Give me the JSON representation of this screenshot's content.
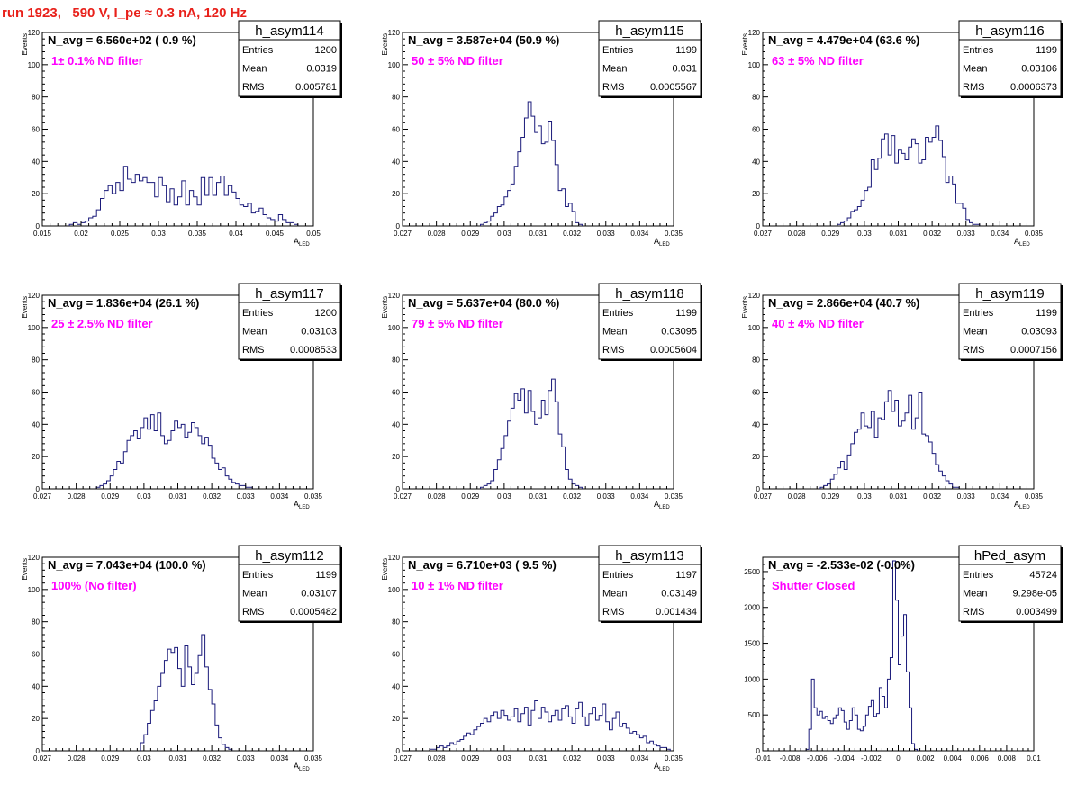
{
  "run_title": "run 1923,   590 V, I_pe ≈ 0.3 nA, 120 Hz",
  "colors": {
    "hist": "#1a1a7a",
    "annotation": "#ff00ff",
    "run_title": "#e8201a"
  },
  "chart_data": [
    {
      "type": "histogram",
      "name": "h_asym114",
      "navg": "N_avg = 6.560e+02 ( 0.9 %)",
      "annotation": "1± 0.1% ND filter",
      "stats": {
        "Entries": "1200",
        "Mean": "0.0319",
        "RMS": "0.005781"
      },
      "xlim": [
        0.015,
        0.05
      ],
      "ylim": [
        0,
        120
      ],
      "xticks": [
        "0.015",
        "0.02",
        "0.025",
        "0.03",
        "0.035",
        "0.04",
        "0.045",
        "0.05"
      ],
      "yticks": [
        "0",
        "20",
        "40",
        "60",
        "80",
        "100",
        "120"
      ],
      "xlabel": "A",
      "xlabel_sub": "LED",
      "ylabel": "Events",
      "bin_start": 0.0185,
      "bin_width": 0.0005,
      "counts": [
        1,
        2,
        1,
        2,
        3,
        5,
        6,
        10,
        17,
        22,
        25,
        20,
        27,
        22,
        37,
        29,
        27,
        32,
        28,
        30,
        27,
        27,
        18,
        30,
        25,
        15,
        23,
        13,
        18,
        28,
        13,
        22,
        18,
        13,
        30,
        19,
        30,
        19,
        27,
        31,
        19,
        25,
        21,
        17,
        13,
        12,
        14,
        8,
        9,
        11,
        7,
        5,
        4,
        3,
        7,
        4,
        2,
        2,
        1
      ]
    },
    {
      "type": "histogram",
      "name": "h_asym115",
      "navg": "N_avg = 3.587e+04 (50.9 %)",
      "annotation": "50 ± 5% ND filter",
      "stats": {
        "Entries": "1199",
        "Mean": "0.031",
        "RMS": "0.0005567"
      },
      "xlim": [
        0.027,
        0.035
      ],
      "ylim": [
        0,
        120
      ],
      "xticks": [
        "0.027",
        "0.028",
        "0.029",
        "0.03",
        "0.031",
        "0.032",
        "0.033",
        "0.034",
        "0.035"
      ],
      "yticks": [
        "0",
        "20",
        "40",
        "60",
        "80",
        "100",
        "120"
      ],
      "xlabel": "A",
      "xlabel_sub": "LED",
      "ylabel": "Events",
      "bin_start": 0.0293,
      "bin_width": 0.0001,
      "counts": [
        1,
        2,
        3,
        6,
        8,
        12,
        13,
        18,
        22,
        26,
        37,
        46,
        55,
        67,
        77,
        68,
        58,
        62,
        51,
        52,
        65,
        53,
        38,
        22,
        23,
        12,
        14,
        9,
        2,
        1
      ]
    },
    {
      "type": "histogram",
      "name": "h_asym116",
      "navg": "N_avg = 4.479e+04 (63.6 %)",
      "annotation": "63 ± 5% ND filter",
      "stats": {
        "Entries": "1199",
        "Mean": "0.03106",
        "RMS": "0.0006373"
      },
      "xlim": [
        0.027,
        0.035
      ],
      "ylim": [
        0,
        120
      ],
      "xticks": [
        "0.027",
        "0.028",
        "0.029",
        "0.03",
        "0.031",
        "0.032",
        "0.033",
        "0.034",
        "0.035"
      ],
      "yticks": [
        "0",
        "20",
        "40",
        "60",
        "80",
        "100",
        "120"
      ],
      "xlabel": "A",
      "xlabel_sub": "LED",
      "ylabel": "Events",
      "bin_start": 0.0292,
      "bin_width": 0.0001,
      "counts": [
        1,
        2,
        3,
        5,
        9,
        10,
        12,
        16,
        22,
        24,
        41,
        35,
        42,
        54,
        57,
        44,
        56,
        39,
        47,
        45,
        41,
        49,
        54,
        51,
        39,
        41,
        55,
        52,
        55,
        62,
        53,
        43,
        27,
        31,
        26,
        14,
        14,
        11,
        4,
        2,
        1,
        1
      ]
    },
    {
      "type": "histogram",
      "name": "h_asym117",
      "navg": "N_avg = 1.836e+04 (26.1 %)",
      "annotation": "25 ± 2.5% ND filter",
      "stats": {
        "Entries": "1200",
        "Mean": "0.03103",
        "RMS": "0.0008533"
      },
      "xlim": [
        0.027,
        0.035
      ],
      "ylim": [
        0,
        120
      ],
      "xticks": [
        "0.027",
        "0.028",
        "0.029",
        "0.03",
        "0.031",
        "0.032",
        "0.033",
        "0.034",
        "0.035"
      ],
      "yticks": [
        "0",
        "20",
        "40",
        "60",
        "80",
        "100",
        "120"
      ],
      "xlabel": "A",
      "xlabel_sub": "LED",
      "ylabel": "Events",
      "bin_start": 0.0286,
      "bin_width": 0.0001,
      "counts": [
        1,
        2,
        3,
        5,
        8,
        12,
        17,
        16,
        23,
        30,
        33,
        36,
        31,
        38,
        44,
        37,
        46,
        36,
        47,
        33,
        28,
        30,
        36,
        42,
        38,
        40,
        32,
        35,
        41,
        38,
        33,
        28,
        32,
        27,
        19,
        16,
        12,
        13,
        8,
        6,
        4,
        3,
        2,
        2,
        1,
        1
      ]
    },
    {
      "type": "histogram",
      "name": "h_asym118",
      "navg": "N_avg = 5.637e+04 (80.0 %)",
      "annotation": "79 ± 5% ND filter",
      "stats": {
        "Entries": "1199",
        "Mean": "0.03095",
        "RMS": "0.0005604"
      },
      "xlim": [
        0.027,
        0.035
      ],
      "ylim": [
        0,
        120
      ],
      "xticks": [
        "0.027",
        "0.028",
        "0.029",
        "0.03",
        "0.031",
        "0.032",
        "0.033",
        "0.034",
        "0.035"
      ],
      "yticks": [
        "0",
        "20",
        "40",
        "60",
        "80",
        "100",
        "120"
      ],
      "xlabel": "A",
      "xlabel_sub": "LED",
      "ylabel": "Events",
      "bin_start": 0.0293,
      "bin_width": 0.0001,
      "counts": [
        1,
        2,
        3,
        5,
        12,
        18,
        25,
        33,
        42,
        50,
        59,
        55,
        62,
        47,
        61,
        48,
        40,
        44,
        55,
        46,
        61,
        68,
        54,
        34,
        26,
        12,
        6,
        3,
        2,
        1
      ]
    },
    {
      "type": "histogram",
      "name": "h_asym119",
      "navg": "N_avg = 2.866e+04 (40.7 %)",
      "annotation": "40 ± 4% ND filter",
      "stats": {
        "Entries": "1199",
        "Mean": "0.03093",
        "RMS": "0.0007156"
      },
      "xlim": [
        0.027,
        0.035
      ],
      "ylim": [
        0,
        120
      ],
      "xticks": [
        "0.027",
        "0.028",
        "0.029",
        "0.03",
        "0.031",
        "0.032",
        "0.033",
        "0.034",
        "0.035"
      ],
      "yticks": [
        "0",
        "20",
        "40",
        "60",
        "80",
        "100",
        "120"
      ],
      "xlabel": "A",
      "xlabel_sub": "LED",
      "ylabel": "Events",
      "bin_start": 0.0287,
      "bin_width": 0.0001,
      "counts": [
        1,
        2,
        3,
        6,
        9,
        13,
        17,
        12,
        21,
        28,
        35,
        37,
        47,
        39,
        38,
        48,
        32,
        44,
        43,
        54,
        61,
        48,
        55,
        39,
        42,
        47,
        58,
        37,
        44,
        60,
        34,
        33,
        29,
        22,
        15,
        11,
        8,
        5,
        3,
        1,
        1
      ]
    },
    {
      "type": "histogram",
      "name": "h_asym112",
      "navg": "N_avg = 7.043e+04 (100.0 %)",
      "annotation": "100% (No filter)",
      "stats": {
        "Entries": "1199",
        "Mean": "0.03107",
        "RMS": "0.0005482"
      },
      "xlim": [
        0.027,
        0.035
      ],
      "ylim": [
        0,
        120
      ],
      "xticks": [
        "0.027",
        "0.028",
        "0.029",
        "0.03",
        "0.031",
        "0.032",
        "0.033",
        "0.034",
        "0.035"
      ],
      "yticks": [
        "0",
        "20",
        "40",
        "60",
        "80",
        "100",
        "120"
      ],
      "xlabel": "A",
      "xlabel_sub": "LED",
      "ylabel": "Events",
      "bin_start": 0.0299,
      "bin_width": 0.0001,
      "counts": [
        5,
        10,
        17,
        25,
        31,
        40,
        48,
        56,
        63,
        61,
        64,
        51,
        40,
        65,
        52,
        41,
        48,
        59,
        72,
        52,
        38,
        29,
        16,
        8,
        4,
        2,
        1
      ]
    },
    {
      "type": "histogram",
      "name": "h_asym113",
      "navg": "N_avg = 6.710e+03 ( 9.5 %)",
      "annotation": "10 ± 1% ND filter",
      "stats": {
        "Entries": "1197",
        "Mean": "0.03149",
        "RMS": "0.001434"
      },
      "xlim": [
        0.027,
        0.035
      ],
      "ylim": [
        0,
        120
      ],
      "xticks": [
        "0.027",
        "0.028",
        "0.029",
        "0.03",
        "0.031",
        "0.032",
        "0.033",
        "0.034",
        "0.035"
      ],
      "yticks": [
        "0",
        "20",
        "40",
        "60",
        "80",
        "100",
        "120"
      ],
      "xlabel": "A",
      "xlabel_sub": "LED",
      "ylabel": "Events",
      "bin_start": 0.0278,
      "bin_width": 0.0001,
      "counts": [
        1,
        1,
        2,
        3,
        2,
        3,
        5,
        4,
        6,
        7,
        9,
        11,
        10,
        13,
        15,
        17,
        20,
        18,
        22,
        24,
        20,
        25,
        22,
        19,
        21,
        26,
        18,
        23,
        27,
        16,
        25,
        31,
        20,
        27,
        24,
        18,
        22,
        25,
        19,
        26,
        28,
        21,
        17,
        26,
        30,
        21,
        16,
        23,
        27,
        19,
        22,
        29,
        18,
        13,
        20,
        24,
        15,
        17,
        14,
        11,
        12,
        10,
        8,
        9,
        5,
        6,
        4,
        3,
        2,
        2,
        1
      ]
    },
    {
      "type": "histogram",
      "name": "hPed_asym",
      "navg": "N_avg = -2.533e-02 (-0.0%)",
      "annotation": "Shutter Closed",
      "stats": {
        "Entries": "45724",
        "Mean": "9.298e-05",
        "RMS": "0.003499"
      },
      "xlim": [
        -0.01,
        0.01
      ],
      "ylim": [
        0,
        2700
      ],
      "xticks": [
        "-0.01",
        "-0.008",
        "-0.006",
        "-0.004",
        "-0.002",
        "0",
        "0.002",
        "0.004",
        "0.006",
        "0.008",
        "0.01"
      ],
      "yticks": [
        "0",
        "500",
        "1000",
        "1500",
        "2000",
        "2500"
      ],
      "xlabel": "",
      "xlabel_sub": "",
      "ylabel": "",
      "bin_start": -0.0068,
      "bin_width": 0.0002,
      "counts": [
        20,
        300,
        1000,
        600,
        500,
        550,
        450,
        480,
        420,
        380,
        450,
        500,
        600,
        560,
        400,
        300,
        420,
        600,
        500,
        300,
        280,
        340,
        500,
        620,
        700,
        480,
        520,
        880,
        760,
        600,
        1000,
        1300,
        2650,
        2100,
        1200,
        1600,
        1900,
        1100,
        600,
        100,
        20
      ]
    }
  ]
}
